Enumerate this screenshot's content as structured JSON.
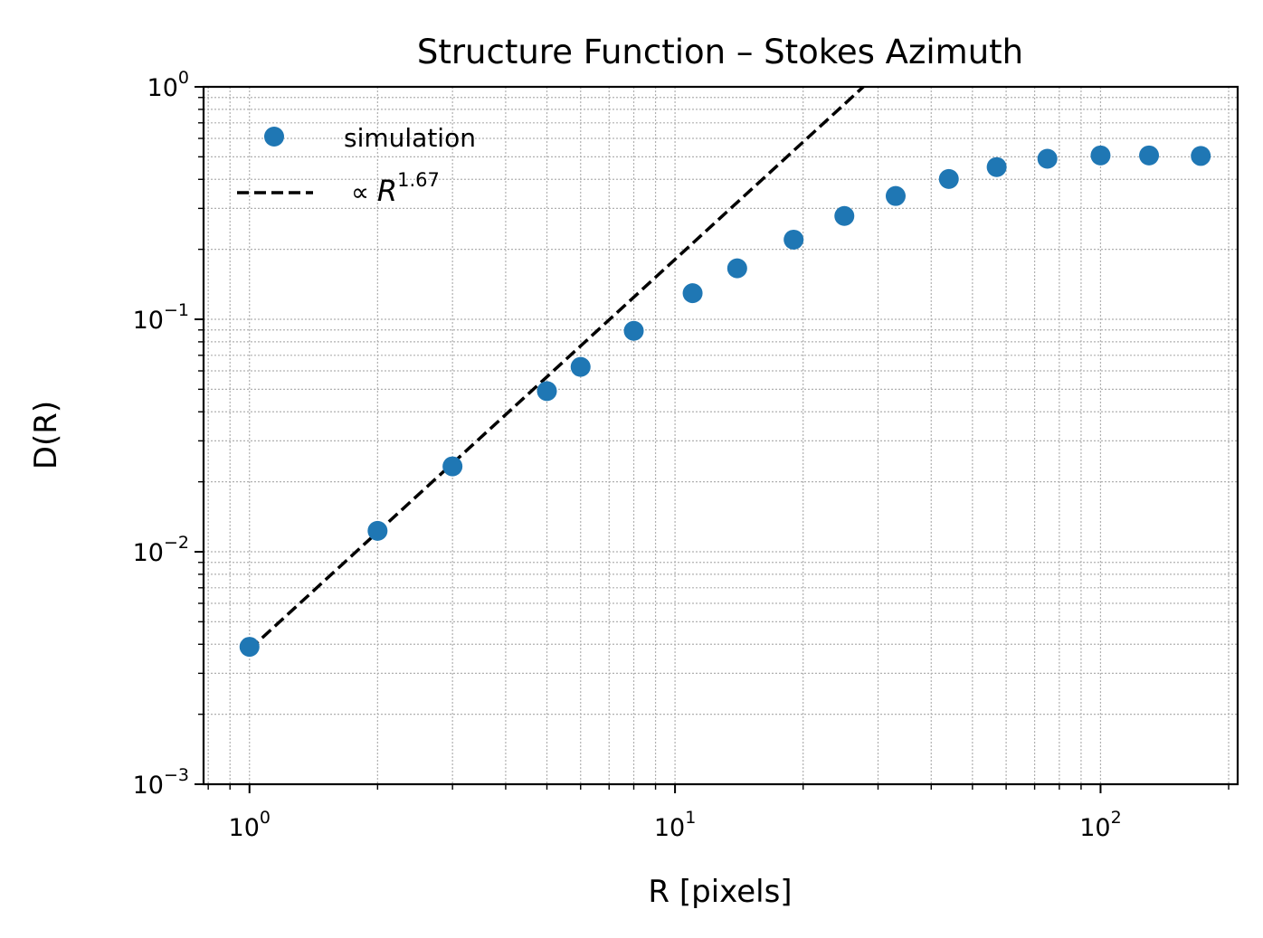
{
  "chart_data": {
    "type": "scatter",
    "title": "Structure Function – Stokes Azimuth",
    "xlabel": "R [pixels]",
    "ylabel": "D(R)",
    "xscale": "log",
    "yscale": "log",
    "xlim": [
      0.78,
      210
    ],
    "ylim": [
      0.001,
      1
    ],
    "grid": true,
    "legend_placement": "upper left",
    "x_tick_labels": [
      {
        "value": 1,
        "base": "10",
        "exp": "0"
      },
      {
        "value": 10,
        "base": "10",
        "exp": "1"
      },
      {
        "value": 100,
        "base": "10",
        "exp": "2"
      }
    ],
    "y_tick_labels": [
      {
        "value": 0.001,
        "base": "10",
        "exp": "−3"
      },
      {
        "value": 0.01,
        "base": "10",
        "exp": "−2"
      },
      {
        "value": 0.1,
        "base": "10",
        "exp": "−1"
      },
      {
        "value": 1,
        "base": "10",
        "exp": "0"
      }
    ],
    "series": [
      {
        "name": "simulation",
        "kind": "scatter",
        "color": "#1f77b4",
        "x": [
          1,
          2,
          3,
          5,
          6,
          8,
          11,
          14,
          19,
          25,
          33,
          44,
          57,
          75,
          100,
          130,
          172
        ],
        "y": [
          0.0039,
          0.0123,
          0.0233,
          0.0491,
          0.0624,
          0.0892,
          0.1295,
          0.1657,
          0.2201,
          0.2783,
          0.3392,
          0.4015,
          0.4517,
          0.4906,
          0.5069,
          0.5069,
          0.5043
        ]
      },
      {
        "name": "∝ R^1.67",
        "legend_prefix": "∝ ",
        "legend_var": "R",
        "legend_exp": "1.67",
        "kind": "line",
        "style": "dashed",
        "color": "#000000",
        "exponent": 1.67,
        "x": [
          1,
          27.7
        ],
        "y": [
          0.0038,
          1.0
        ]
      }
    ]
  }
}
